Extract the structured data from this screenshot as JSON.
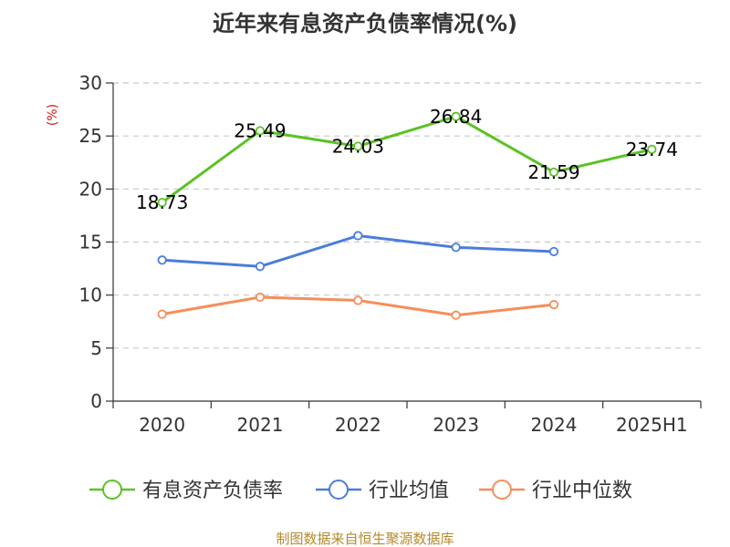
{
  "chart_data": {
    "type": "line",
    "title": "近年来有息资产负债率情况(%)",
    "ylabel": "(%)",
    "xlabel": "",
    "categories": [
      "2020",
      "2021",
      "2022",
      "2023",
      "2024",
      "2025H1"
    ],
    "ylim": [
      0,
      30
    ],
    "yticks": [
      0,
      5,
      10,
      15,
      20,
      25,
      30
    ],
    "grid": true,
    "legend_position": "bottom",
    "series": [
      {
        "name": "有息资产负债率",
        "color": "#5bc226",
        "values": [
          18.73,
          25.49,
          24.03,
          26.84,
          21.59,
          23.74
        ],
        "value_labels": [
          "18.73",
          "25.49",
          "24.03",
          "26.84",
          "21.59",
          "23.74"
        ]
      },
      {
        "name": "行业均值",
        "color": "#4b7ddb",
        "values": [
          13.3,
          12.7,
          15.6,
          14.5,
          14.1,
          null
        ]
      },
      {
        "name": "行业中位数",
        "color": "#f58e5a",
        "values": [
          8.2,
          9.8,
          9.5,
          8.1,
          9.1,
          null
        ]
      }
    ]
  },
  "source_text": "制图数据来自恒生聚源数据库"
}
